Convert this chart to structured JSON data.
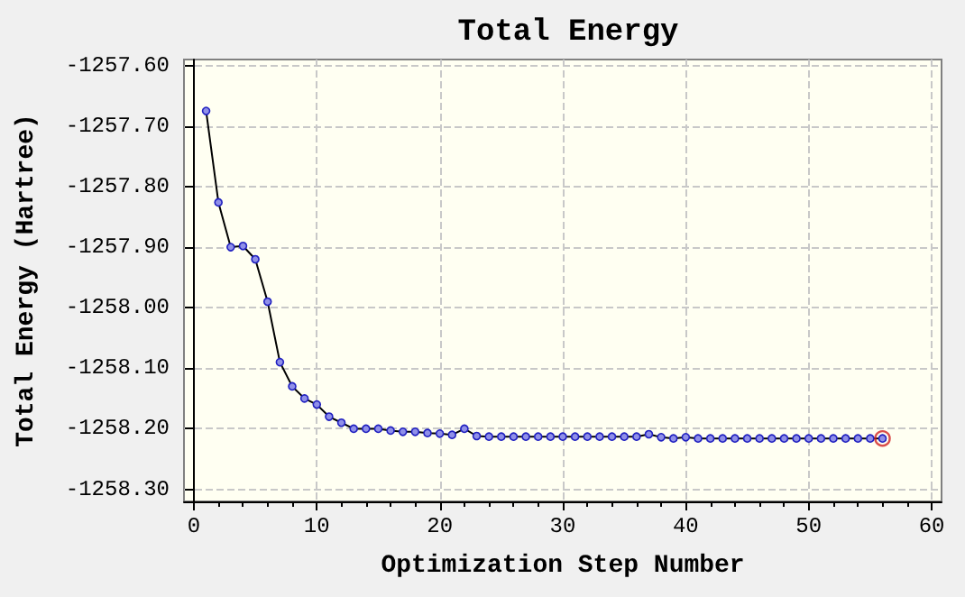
{
  "chart_data": {
    "type": "line",
    "title": "Total Energy",
    "xlabel": "Optimization Step Number",
    "ylabel": "Total Energy (Hartree)",
    "x": [
      1,
      2,
      3,
      4,
      5,
      6,
      7,
      8,
      9,
      10,
      11,
      12,
      13,
      14,
      15,
      16,
      17,
      18,
      19,
      20,
      21,
      22,
      23,
      24,
      25,
      26,
      27,
      28,
      29,
      30,
      31,
      32,
      33,
      34,
      35,
      36,
      37,
      38,
      39,
      40,
      41,
      42,
      43,
      44,
      45,
      46,
      47,
      48,
      49,
      50,
      51,
      52,
      53,
      54,
      55,
      56
    ],
    "series": [
      {
        "color": "#2020c0",
        "marker": "circle",
        "values": [
          -1257.675,
          -1257.826,
          -1257.9,
          -1257.898,
          -1257.92,
          -1257.99,
          -1258.09,
          -1258.13,
          -1258.15,
          -1258.16,
          -1258.18,
          -1258.19,
          -1258.2,
          -1258.2,
          -1258.2,
          -1258.203,
          -1258.205,
          -1258.205,
          -1258.207,
          -1258.208,
          -1258.21,
          -1258.2,
          -1258.212,
          -1258.213,
          -1258.213,
          -1258.213,
          -1258.213,
          -1258.213,
          -1258.213,
          -1258.213,
          -1258.213,
          -1258.213,
          -1258.213,
          -1258.213,
          -1258.213,
          -1258.213,
          -1258.209,
          -1258.214,
          -1258.216,
          -1258.214,
          -1258.216,
          -1258.216,
          -1258.216,
          -1258.216,
          -1258.216,
          -1258.216,
          -1258.216,
          -1258.216,
          -1258.216,
          -1258.216,
          -1258.216,
          -1258.216,
          -1258.216,
          -1258.216,
          -1258.216,
          -1258.216
        ]
      },
      {
        "type": "scatter",
        "color": "#d02020",
        "x": [
          56
        ],
        "values": [
          -1258.216
        ]
      }
    ],
    "xlim": [
      -0.8,
      60.8
    ],
    "xticks": [
      0,
      10,
      20,
      30,
      40,
      50,
      60
    ],
    "ylim": [
      -1258.32,
      -1257.59
    ],
    "yticks": [
      {
        "value": -1257.6,
        "label": "-1257.60"
      },
      {
        "value": -1257.7,
        "label": "-1257.70"
      },
      {
        "value": -1257.8,
        "label": "-1257.80"
      },
      {
        "value": -1257.9,
        "label": "-1257.90"
      },
      {
        "value": -1258.0,
        "label": "-1258.00"
      },
      {
        "value": -1258.1,
        "label": "-1258.10"
      },
      {
        "value": -1258.2,
        "label": "-1258.20"
      },
      {
        "value": -1258.3,
        "label": "-1258.30"
      }
    ],
    "grid": true,
    "line_style": "solid"
  }
}
